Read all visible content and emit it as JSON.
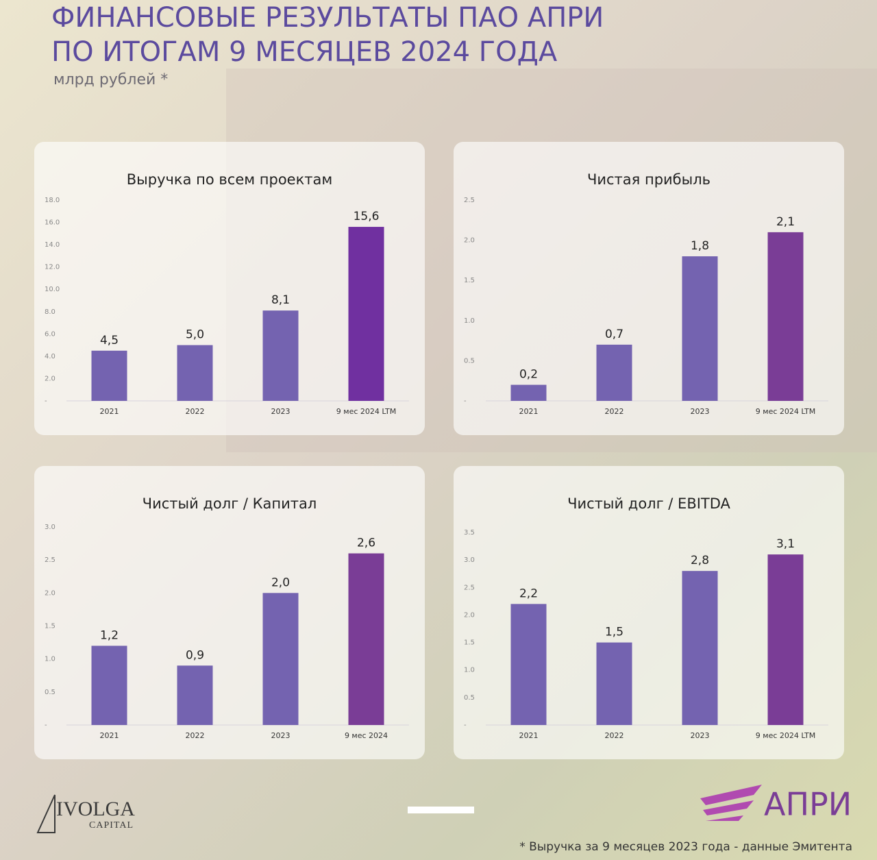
{
  "header": {
    "title": [
      "ФИНАНСОВЫЕ РЕЗУЛЬТАТЫ ПАО АПРИ",
      "ПО ИТОГАМ 9 МЕСЯЦЕВ 2024 ГОДА"
    ],
    "subtitle": "млрд рублей *"
  },
  "chart_data": [
    {
      "type": "bar",
      "title": "Выручка по всем проектам",
      "categories": [
        "2021",
        "2022",
        "2023",
        "9 мес 2024 LTM"
      ],
      "values": [
        4.5,
        5.0,
        8.1,
        15.6
      ],
      "value_labels": [
        "4,5",
        "5,0",
        "8,1",
        "15,6"
      ],
      "colors": [
        "#7463b0",
        "#7463b0",
        "#7463b0",
        "#7030a0"
      ],
      "ylim": [
        0,
        18
      ],
      "yticks": [
        {
          "value": 0,
          "label": "-"
        },
        {
          "value": 2,
          "label": "2.0"
        },
        {
          "value": 4,
          "label": "4.0"
        },
        {
          "value": 6,
          "label": "6.0"
        },
        {
          "value": 8,
          "label": "8.0"
        },
        {
          "value": 10,
          "label": "10.0"
        },
        {
          "value": 12,
          "label": "12.0"
        },
        {
          "value": 14,
          "label": "14.0"
        },
        {
          "value": 16,
          "label": "16.0"
        },
        {
          "value": 18,
          "label": "18.0"
        }
      ],
      "grid": false
    },
    {
      "type": "bar",
      "title": "Чистая прибыль",
      "categories": [
        "2021",
        "2022",
        "2023",
        "9 мес 2024 LTM"
      ],
      "values": [
        0.2,
        0.7,
        1.8,
        2.1
      ],
      "value_labels": [
        "0,2",
        "0,7",
        "1,8",
        "2,1"
      ],
      "colors": [
        "#7463b0",
        "#7463b0",
        "#7463b0",
        "#7a3d96"
      ],
      "ylim": [
        0,
        2.5
      ],
      "yticks": [
        {
          "value": 0,
          "label": "-"
        },
        0.5,
        {
          "value": 1,
          "label": "1.0"
        },
        1.5,
        {
          "value": 2,
          "label": "2.0"
        },
        2.5
      ],
      "grid": false
    },
    {
      "type": "bar",
      "title": "Чистый долг / Капитал",
      "categories": [
        "2021",
        "2022",
        "2023",
        "9 мес 2024"
      ],
      "values": [
        1.2,
        0.9,
        2.0,
        2.6
      ],
      "value_labels": [
        "1,2",
        "0,9",
        "2,0",
        "2,6"
      ],
      "colors": [
        "#7463b0",
        "#7463b0",
        "#7463b0",
        "#7a3d96"
      ],
      "ylim": [
        0,
        3
      ],
      "yticks": [
        {
          "value": 0,
          "label": "-"
        },
        0.5,
        {
          "value": 1,
          "label": "1.0"
        },
        1.5,
        {
          "value": 2,
          "label": "2.0"
        },
        2.5,
        {
          "value": 3,
          "label": "3.0"
        }
      ],
      "grid": false
    },
    {
      "type": "bar",
      "title": "Чистый долг / EBITDA",
      "categories": [
        "2021",
        "2022",
        "2023",
        "9 мес 2024 LTM"
      ],
      "values": [
        2.2,
        1.5,
        2.8,
        3.1
      ],
      "value_labels": [
        "2,2",
        "1,5",
        "2,8",
        "3,1"
      ],
      "colors": [
        "#7463b0",
        "#7463b0",
        "#7463b0",
        "#7a3d96"
      ],
      "ylim": [
        0,
        3.5
      ],
      "yticks": [
        {
          "value": 0,
          "label": "-"
        },
        0.5,
        {
          "value": 1,
          "label": "1.0"
        },
        1.5,
        {
          "value": 2,
          "label": "2.0"
        },
        2.5,
        {
          "value": 3,
          "label": "3.0"
        },
        3.5
      ],
      "grid": false
    }
  ],
  "footer": {
    "logo_left": [
      "IVOLGA",
      "CAPITAL"
    ],
    "logo_right": "АПРИ",
    "note": "* Выручка за 9 месяцев 2023 года - данные Эмитента"
  }
}
